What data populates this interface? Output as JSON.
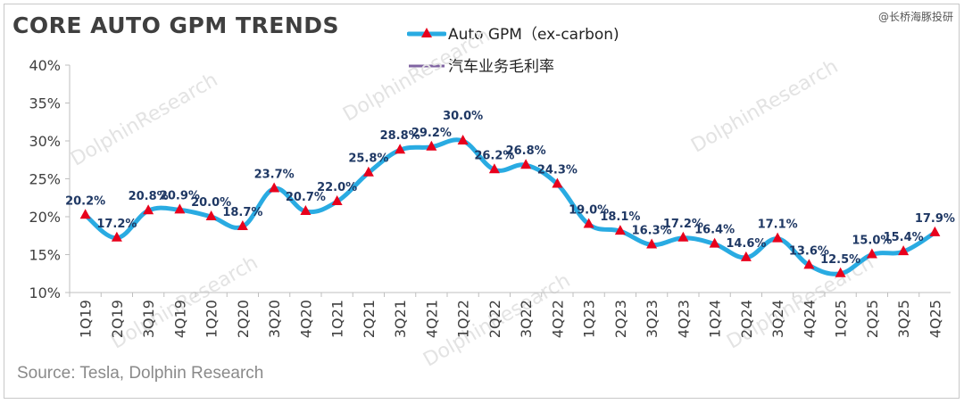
{
  "title": "CORE AUTO GPM TRENDS",
  "corner_mark": "@长桥海豚投研",
  "source": "Source: Tesla, Dolphin Research",
  "watermark_text": "DolphinResearch",
  "legend": [
    {
      "label": "Auto GPM（ex-carbon)",
      "color": "#29abe2",
      "marker": "triangle",
      "marker_color": "#e8001c"
    },
    {
      "label": "汽车业务毛利率",
      "color": "#8064a2"
    }
  ],
  "chart_data": {
    "type": "line",
    "title": "CORE AUTO GPM TRENDS",
    "xlabel": "",
    "ylabel": "",
    "ylim": [
      10,
      40
    ],
    "yticks": [
      "10%",
      "15%",
      "20%",
      "25%",
      "30%",
      "35%",
      "40%"
    ],
    "categories": [
      "1Q19",
      "2Q19",
      "3Q19",
      "4Q19",
      "1Q20",
      "2Q20",
      "3Q20",
      "4Q20",
      "1Q21",
      "2Q21",
      "3Q21",
      "4Q21",
      "1Q22",
      "2Q22",
      "3Q22",
      "4Q22",
      "1Q23",
      "2Q23",
      "3Q23",
      "4Q23",
      "1Q24",
      "2Q24",
      "3Q24",
      "4Q24",
      "1Q25",
      "2Q25",
      "3Q25",
      "4Q25"
    ],
    "series": [
      {
        "name": "Auto GPM（ex-carbon)",
        "values": [
          20.2,
          17.2,
          20.8,
          20.9,
          20.0,
          18.7,
          23.7,
          20.7,
          22.0,
          25.8,
          28.8,
          29.2,
          30.0,
          26.2,
          26.8,
          24.3,
          19.0,
          18.1,
          16.3,
          17.2,
          16.4,
          14.6,
          17.1,
          13.6,
          12.5,
          15.0,
          15.4,
          17.9
        ],
        "labels": [
          "20.2%",
          "17.2%",
          "20.8%",
          "20.9%",
          "20.0%",
          "18.7%",
          "23.7%",
          "20.7%",
          "22.0%",
          "25.8%",
          "28.8%",
          "29.2%",
          "30.0%",
          "26.2%",
          "26.8%",
          "24.3%",
          "19.0%",
          "18.1%",
          "16.3%",
          "17.2%",
          "16.4%",
          "14.6%",
          "17.1%",
          "13.6%",
          "12.5%",
          "15.0%",
          "15.4%",
          "17.9%"
        ]
      }
    ],
    "label_color": "#1f3864",
    "grid": false
  }
}
